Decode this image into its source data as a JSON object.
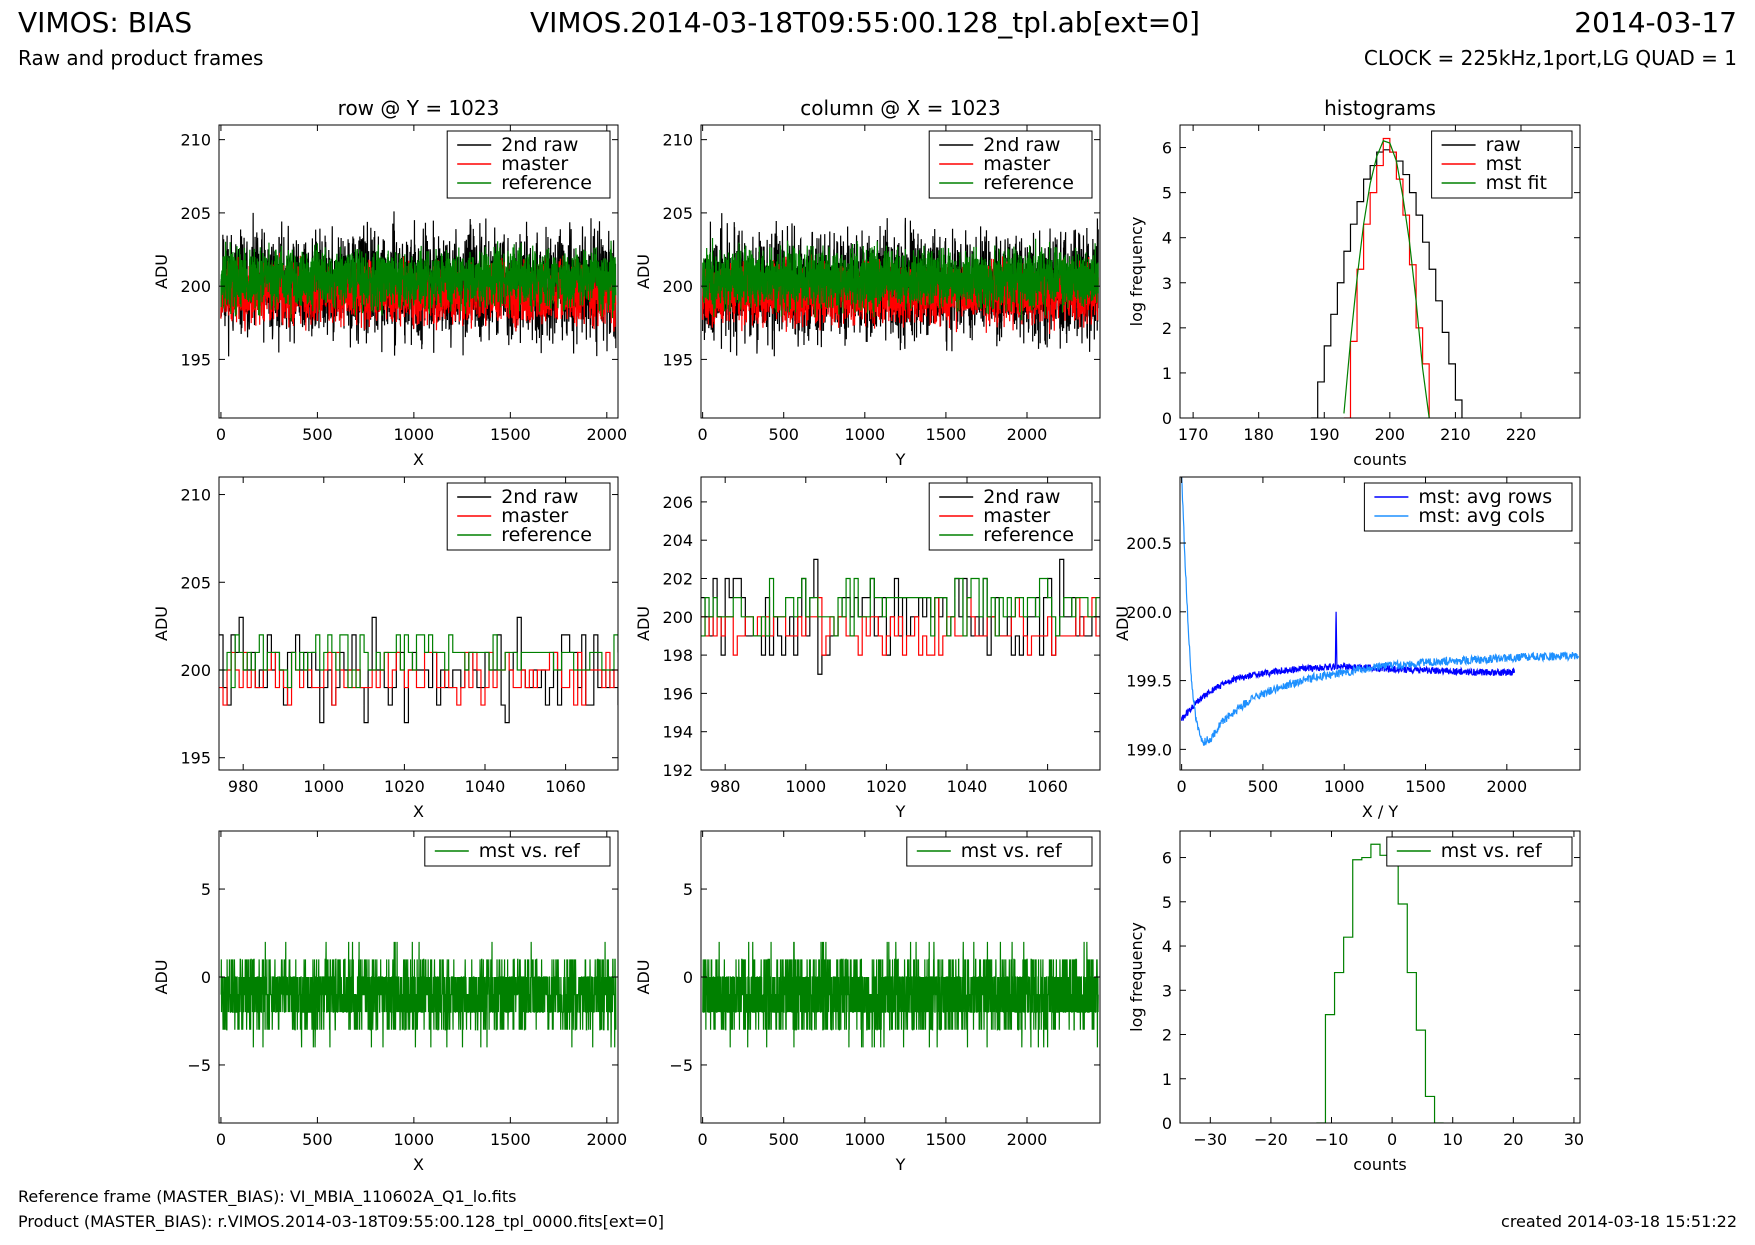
{
  "header": {
    "title_left": "VIMOS: BIAS",
    "title_center": "VIMOS.2014-03-18T09:55:00.128_tpl.ab[ext=0]",
    "title_right": "2014-03-17",
    "subtitle_left": "Raw and product frames",
    "subtitle_right": "CLOCK = 225kHz,1port,LG QUAD = 1"
  },
  "footer": {
    "reference": "Reference frame (MASTER_BIAS): VI_MBIA_110602A_Q1_lo.fits",
    "product": "Product (MASTER_BIAS): r.VIMOS.2014-03-18T09:55:00.128_tpl_0000.fits[ext=0]",
    "created": "created 2014-03-18 15:51:22"
  },
  "colors": {
    "raw": "#000000",
    "master": "#ff0000",
    "reference": "#008000",
    "avg_rows": "#0000ff",
    "avg_cols": "#1e90ff"
  },
  "chart_data": [
    {
      "id": "p1",
      "type": "line",
      "title": "row @ Y = 1023",
      "xlabel": "X",
      "ylabel": "ADU",
      "xlim": [
        -10,
        2058
      ],
      "ylim": [
        191,
        211
      ],
      "xticks": [
        0,
        500,
        1000,
        1500,
        2000
      ],
      "yticks": [
        195,
        200,
        205,
        210
      ],
      "legend": "top-right",
      "series": [
        {
          "name": "2nd raw",
          "color": "#000000",
          "noise": {
            "n": 2048,
            "x0": 0,
            "x1": 2047,
            "mean": 200,
            "amp": 3.5,
            "min": 192,
            "max": 207,
            "seed": 11
          }
        },
        {
          "name": "master",
          "color": "#ff0000",
          "noise": {
            "n": 2048,
            "x0": 0,
            "x1": 2047,
            "mean": 199.5,
            "amp": 2,
            "min": 195,
            "max": 203,
            "seed": 12
          }
        },
        {
          "name": "reference",
          "color": "#008000",
          "noise": {
            "n": 2048,
            "x0": 0,
            "x1": 2047,
            "mean": 200.5,
            "amp": 2,
            "min": 197,
            "max": 204,
            "seed": 13
          }
        }
      ]
    },
    {
      "id": "p2",
      "type": "line",
      "title": "column @ X = 1023",
      "xlabel": "Y",
      "ylabel": "ADU",
      "xlim": [
        -10,
        2450
      ],
      "ylim": [
        191,
        211
      ],
      "xticks": [
        0,
        500,
        1000,
        1500,
        2000
      ],
      "yticks": [
        195,
        200,
        205,
        210
      ],
      "legend": "top-right",
      "series": [
        {
          "name": "2nd raw",
          "color": "#000000",
          "noise": {
            "n": 2440,
            "x0": 0,
            "x1": 2439,
            "mean": 200,
            "amp": 3.5,
            "min": 192,
            "max": 207,
            "seed": 21
          }
        },
        {
          "name": "master",
          "color": "#ff0000",
          "noise": {
            "n": 2440,
            "x0": 0,
            "x1": 2439,
            "mean": 199.5,
            "amp": 2,
            "min": 195,
            "max": 203,
            "seed": 22
          }
        },
        {
          "name": "reference",
          "color": "#008000",
          "noise": {
            "n": 2440,
            "x0": 0,
            "x1": 2439,
            "mean": 200.5,
            "amp": 2,
            "min": 197,
            "max": 204,
            "seed": 23
          }
        }
      ]
    },
    {
      "id": "p3",
      "type": "line",
      "title": "histograms",
      "xlabel": "counts",
      "ylabel": "log frequency",
      "xlim": [
        168,
        229
      ],
      "ylim": [
        0,
        6.5
      ],
      "xticks": [
        170,
        180,
        190,
        200,
        210,
        220
      ],
      "yticks": [
        0,
        1,
        2,
        3,
        4,
        5,
        6
      ],
      "legend": "top-right",
      "series": [
        {
          "name": "raw",
          "color": "#000000",
          "step": true,
          "x": [
            188,
            189,
            190,
            191,
            192,
            193,
            194,
            195,
            196,
            197,
            198,
            199,
            200,
            201,
            202,
            203,
            204,
            205,
            206,
            207,
            208,
            209,
            210,
            211
          ],
          "y": [
            0,
            0.8,
            1.6,
            2.3,
            3.0,
            3.7,
            4.3,
            4.8,
            5.3,
            5.6,
            5.9,
            5.95,
            5.9,
            5.7,
            5.4,
            5.0,
            4.5,
            3.9,
            3.3,
            2.6,
            1.9,
            1.2,
            0.4,
            0
          ]
        },
        {
          "name": "mst",
          "color": "#ff0000",
          "step": true,
          "x": [
            193,
            194,
            195,
            196,
            197,
            198,
            199,
            200,
            201,
            202,
            203,
            204,
            205,
            206
          ],
          "y": [
            0,
            1.7,
            3.3,
            4.3,
            5.0,
            5.6,
            6.2,
            5.9,
            5.3,
            4.5,
            3.4,
            2.0,
            1.2,
            0
          ]
        },
        {
          "name": "mst fit",
          "color": "#008000",
          "x": [
            193,
            194,
            195,
            196,
            197,
            198,
            199,
            200,
            201,
            202,
            203,
            204,
            205,
            206
          ],
          "y": [
            0.1,
            1.7,
            3.1,
            4.3,
            5.2,
            5.8,
            6.15,
            6.1,
            5.7,
            4.9,
            3.9,
            2.6,
            1.1,
            0
          ]
        }
      ]
    },
    {
      "id": "p4",
      "type": "line",
      "title": "",
      "xlabel": "X",
      "ylabel": "ADU",
      "xlim": [
        974,
        1073
      ],
      "ylim": [
        194.3,
        211
      ],
      "xticks": [
        980,
        1000,
        1020,
        1040,
        1060
      ],
      "yticks": [
        195,
        200,
        205,
        210
      ],
      "legend": "top-right",
      "series": [
        {
          "name": "2nd raw",
          "color": "#000000",
          "step": true,
          "noise": {
            "n": 100,
            "x0": 974,
            "x1": 1073,
            "mean": 200,
            "amp": 2.6,
            "min": 195,
            "max": 207,
            "seed": 41,
            "int": true
          }
        },
        {
          "name": "master",
          "color": "#ff0000",
          "step": true,
          "noise": {
            "n": 100,
            "x0": 974,
            "x1": 1073,
            "mean": 199.6,
            "amp": 1.4,
            "min": 198,
            "max": 203,
            "seed": 42,
            "int": true
          }
        },
        {
          "name": "reference",
          "color": "#008000",
          "step": true,
          "noise": {
            "n": 100,
            "x0": 974,
            "x1": 1073,
            "mean": 200.8,
            "amp": 1.4,
            "min": 198,
            "max": 204,
            "seed": 43,
            "int": true
          }
        }
      ]
    },
    {
      "id": "p5",
      "type": "line",
      "title": "",
      "xlabel": "Y",
      "ylabel": "ADU",
      "xlim": [
        974,
        1073
      ],
      "ylim": [
        192,
        207.3
      ],
      "xticks": [
        980,
        1000,
        1020,
        1040,
        1060
      ],
      "yticks": [
        192,
        194,
        196,
        198,
        200,
        202,
        204,
        206
      ],
      "legend": "top-right",
      "series": [
        {
          "name": "2nd raw",
          "color": "#000000",
          "step": true,
          "noise": {
            "n": 100,
            "x0": 974,
            "x1": 1073,
            "mean": 200,
            "amp": 2.5,
            "min": 193,
            "max": 204,
            "seed": 51,
            "int": true
          }
        },
        {
          "name": "master",
          "color": "#ff0000",
          "step": true,
          "noise": {
            "n": 100,
            "x0": 974,
            "x1": 1073,
            "mean": 199.4,
            "amp": 1.3,
            "min": 197,
            "max": 201,
            "seed": 52,
            "int": true
          }
        },
        {
          "name": "reference",
          "color": "#008000",
          "step": true,
          "noise": {
            "n": 100,
            "x0": 974,
            "x1": 1073,
            "mean": 200.6,
            "amp": 1.4,
            "min": 198,
            "max": 203,
            "seed": 53,
            "int": true
          }
        }
      ]
    },
    {
      "id": "p6",
      "type": "line",
      "title": "",
      "xlabel": "X / Y",
      "ylabel": "ADU",
      "xlim": [
        -10,
        2450
      ],
      "ylim": [
        198.85,
        200.98
      ],
      "xticks": [
        0,
        500,
        1000,
        1500,
        2000
      ],
      "yticks": [
        199.0,
        199.5,
        200.0,
        200.5
      ],
      "ytick_labels": [
        "199.0",
        "199.5",
        "200.0",
        "200.5"
      ],
      "legend": "top-right",
      "series": [
        {
          "name": "mst: avg rows",
          "color": "#0000ff",
          "x": [
            0,
            100,
            200,
            300,
            400,
            500,
            600,
            700,
            800,
            900,
            945,
            950,
            955,
            1000,
            1200,
            1400,
            1600,
            1800,
            2047
          ],
          "y": [
            199.22,
            199.35,
            199.44,
            199.5,
            199.53,
            199.55,
            199.57,
            199.58,
            199.59,
            199.6,
            199.6,
            200.0,
            199.6,
            199.6,
            199.59,
            199.58,
            199.57,
            199.56,
            199.56
          ],
          "jitter": 0.025,
          "seed": 61
        },
        {
          "name": "mst: avg cols",
          "color": "#1e90ff",
          "x": [
            0,
            20,
            40,
            60,
            90,
            130,
            180,
            250,
            350,
            450,
            600,
            800,
            1000,
            1200,
            1500,
            1800,
            2100,
            2439
          ],
          "y": [
            200.98,
            200.4,
            199.9,
            199.5,
            199.2,
            199.05,
            199.08,
            199.2,
            199.3,
            199.38,
            199.45,
            199.52,
            199.56,
            199.6,
            199.63,
            199.65,
            199.67,
            199.68
          ],
          "jitter": 0.03,
          "seed": 62
        }
      ]
    },
    {
      "id": "p7",
      "type": "line",
      "title": "",
      "xlabel": "X",
      "ylabel": "ADU",
      "xlim": [
        -10,
        2058
      ],
      "ylim": [
        -8.3,
        8.3
      ],
      "xticks": [
        0,
        500,
        1000,
        1500,
        2000
      ],
      "yticks": [
        -5,
        0,
        5
      ],
      "legend": "top-right",
      "series": [
        {
          "name": "mst vs. ref",
          "color": "#008000",
          "noise": {
            "n": 2048,
            "x0": 0,
            "x1": 2047,
            "mean": -1,
            "amp": 2.2,
            "min": -7,
            "max": 5,
            "seed": 71,
            "int": true
          }
        }
      ]
    },
    {
      "id": "p8",
      "type": "line",
      "title": "",
      "xlabel": "Y",
      "ylabel": "ADU",
      "xlim": [
        -10,
        2450
      ],
      "ylim": [
        -8.3,
        8.3
      ],
      "xticks": [
        0,
        500,
        1000,
        1500,
        2000
      ],
      "yticks": [
        -5,
        0,
        5
      ],
      "legend": "top-right",
      "series": [
        {
          "name": "mst vs. ref",
          "color": "#008000",
          "noise": {
            "n": 2440,
            "x0": 0,
            "x1": 2439,
            "mean": -1,
            "amp": 2.2,
            "min": -7,
            "max": 5,
            "seed": 81,
            "int": true
          }
        }
      ]
    },
    {
      "id": "p9",
      "type": "line",
      "title": "",
      "xlabel": "counts",
      "ylabel": "log frequency",
      "xlim": [
        -35,
        31
      ],
      "ylim": [
        0,
        6.6
      ],
      "xticks": [
        -30,
        -20,
        -10,
        0,
        10,
        20,
        30
      ],
      "yticks": [
        0,
        1,
        2,
        3,
        4,
        5,
        6
      ],
      "legend": "top-right",
      "series": [
        {
          "name": "mst vs. ref",
          "color": "#008000",
          "step": true,
          "x": [
            -12.5,
            -11,
            -9.5,
            -8,
            -6.5,
            -5,
            -3.5,
            -2,
            -0.5,
            1,
            2.5,
            4,
            5.5,
            7,
            8.5
          ],
          "y": [
            0,
            2.45,
            3.4,
            4.2,
            5.95,
            6.0,
            6.3,
            6.05,
            5.85,
            4.95,
            3.4,
            2.1,
            0.6,
            0,
            0
          ]
        }
      ]
    }
  ]
}
